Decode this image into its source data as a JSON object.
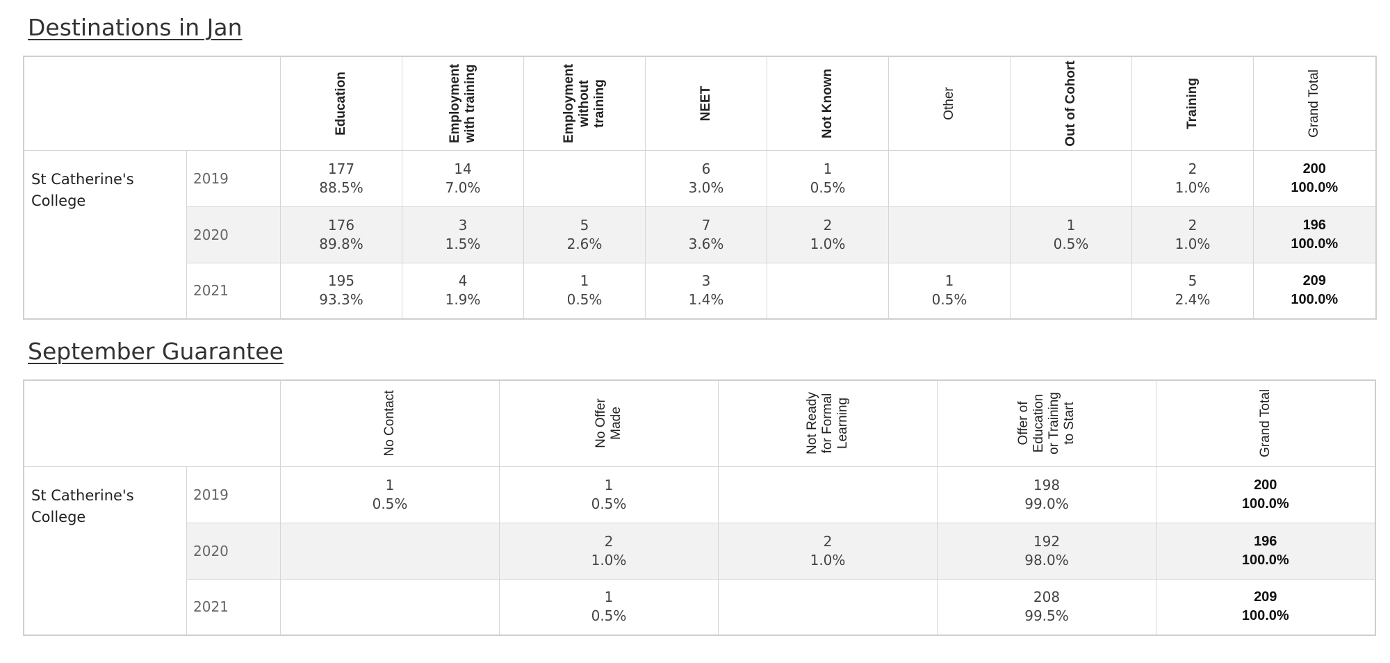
{
  "chart_data": [
    {
      "type": "table",
      "title": "Destinations in Jan",
      "row_group": "St Catherine's College",
      "columns": [
        {
          "label": "Education",
          "bold": true
        },
        {
          "label": "Employment\nwith training",
          "bold": true
        },
        {
          "label": "Employment\nwithout\ntraining",
          "bold": true
        },
        {
          "label": "NEET",
          "bold": true
        },
        {
          "label": "Not Known",
          "bold": true
        },
        {
          "label": "Other",
          "bold": false
        },
        {
          "label": "Out of Cohort",
          "bold": true
        },
        {
          "label": "Training",
          "bold": true
        },
        {
          "label": "Grand Total",
          "bold": false
        }
      ],
      "rows": [
        {
          "year": "2019",
          "cells": [
            {
              "count": "177",
              "pct": "88.5%"
            },
            {
              "count": "14",
              "pct": "7.0%"
            },
            {
              "count": "",
              "pct": ""
            },
            {
              "count": "6",
              "pct": "3.0%"
            },
            {
              "count": "1",
              "pct": "0.5%"
            },
            {
              "count": "",
              "pct": ""
            },
            {
              "count": "",
              "pct": ""
            },
            {
              "count": "2",
              "pct": "1.0%"
            },
            {
              "count": "200",
              "pct": "100.0%"
            }
          ]
        },
        {
          "year": "2020",
          "cells": [
            {
              "count": "176",
              "pct": "89.8%"
            },
            {
              "count": "3",
              "pct": "1.5%"
            },
            {
              "count": "5",
              "pct": "2.6%"
            },
            {
              "count": "7",
              "pct": "3.6%"
            },
            {
              "count": "2",
              "pct": "1.0%"
            },
            {
              "count": "",
              "pct": ""
            },
            {
              "count": "1",
              "pct": "0.5%"
            },
            {
              "count": "2",
              "pct": "1.0%"
            },
            {
              "count": "196",
              "pct": "100.0%"
            }
          ]
        },
        {
          "year": "2021",
          "cells": [
            {
              "count": "195",
              "pct": "93.3%"
            },
            {
              "count": "4",
              "pct": "1.9%"
            },
            {
              "count": "1",
              "pct": "0.5%"
            },
            {
              "count": "3",
              "pct": "1.4%"
            },
            {
              "count": "",
              "pct": ""
            },
            {
              "count": "1",
              "pct": "0.5%"
            },
            {
              "count": "",
              "pct": ""
            },
            {
              "count": "5",
              "pct": "2.4%"
            },
            {
              "count": "209",
              "pct": "100.0%"
            }
          ]
        }
      ]
    },
    {
      "type": "table",
      "title": "September Guarantee",
      "row_group": "St Catherine's College",
      "columns": [
        {
          "label": "No Contact",
          "bold": false
        },
        {
          "label": "No Offer\nMade",
          "bold": false
        },
        {
          "label": "Not Ready\nfor Formal\nLearning",
          "bold": false
        },
        {
          "label": "Offer of\nEducation\nor Training\nto Start",
          "bold": false
        },
        {
          "label": "Grand Total",
          "bold": false
        }
      ],
      "rows": [
        {
          "year": "2019",
          "cells": [
            {
              "count": "1",
              "pct": "0.5%"
            },
            {
              "count": "1",
              "pct": "0.5%"
            },
            {
              "count": "",
              "pct": ""
            },
            {
              "count": "198",
              "pct": "99.0%"
            },
            {
              "count": "200",
              "pct": "100.0%"
            }
          ]
        },
        {
          "year": "2020",
          "cells": [
            {
              "count": "",
              "pct": ""
            },
            {
              "count": "2",
              "pct": "1.0%"
            },
            {
              "count": "2",
              "pct": "1.0%"
            },
            {
              "count": "192",
              "pct": "98.0%"
            },
            {
              "count": "196",
              "pct": "100.0%"
            }
          ]
        },
        {
          "year": "2021",
          "cells": [
            {
              "count": "",
              "pct": ""
            },
            {
              "count": "1",
              "pct": "0.5%"
            },
            {
              "count": "",
              "pct": ""
            },
            {
              "count": "208",
              "pct": "99.5%"
            },
            {
              "count": "209",
              "pct": "100.0%"
            }
          ]
        }
      ]
    }
  ]
}
